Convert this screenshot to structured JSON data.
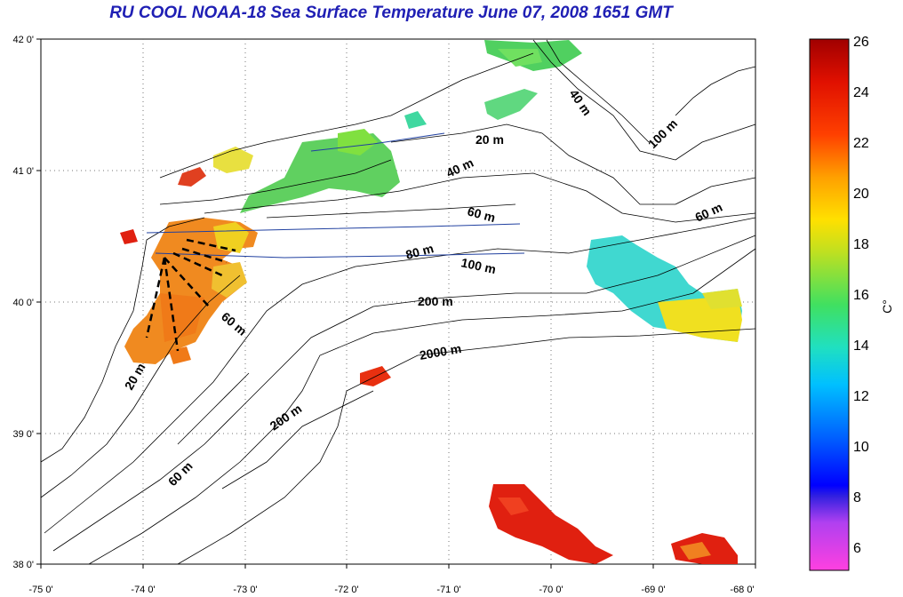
{
  "title": "RU COOL  NOAA-18 Sea Surface Temperature June 07, 2008 1651 GMT",
  "x_ticks": [
    "-75 0'",
    "-74 0'",
    "-73 0'",
    "-72 0'",
    "-71 0'",
    "-70 0'",
    "-69 0'",
    "-68 0'"
  ],
  "y_ticks": [
    "42 0'",
    "41 0'",
    "40 0'",
    "39 0'",
    "38 0'"
  ],
  "colorbar": {
    "ticks": [
      "26",
      "24",
      "22",
      "20",
      "18",
      "16",
      "14",
      "12",
      "10",
      "8",
      "6"
    ],
    "unit": "C°",
    "range": [
      5,
      26
    ]
  },
  "contour_labels": [
    {
      "text": "40 m",
      "rot": 55
    },
    {
      "text": "20 m",
      "rot": 0
    },
    {
      "text": "40 m",
      "rot": -25
    },
    {
      "text": "100 m",
      "rot": -45
    },
    {
      "text": "60 m",
      "rot": 15
    },
    {
      "text": "60 m",
      "rot": -25
    },
    {
      "text": "80 m",
      "rot": -15
    },
    {
      "text": "100 m",
      "rot": 12
    },
    {
      "text": "200 m",
      "rot": 0
    },
    {
      "text": "2000 m",
      "rot": -10
    },
    {
      "text": "60 m",
      "rot": 40
    },
    {
      "text": "20 m",
      "rot": -60
    },
    {
      "text": "200 m",
      "rot": -35
    },
    {
      "text": "60 m",
      "rot": -45
    }
  ],
  "colors": {
    "title": "#1f1fb4",
    "sst_warm": "#e02010",
    "sst_orange": "#f08020",
    "sst_yellow": "#f0e020",
    "sst_green": "#60d040",
    "sst_cyan": "#30d8d0"
  }
}
